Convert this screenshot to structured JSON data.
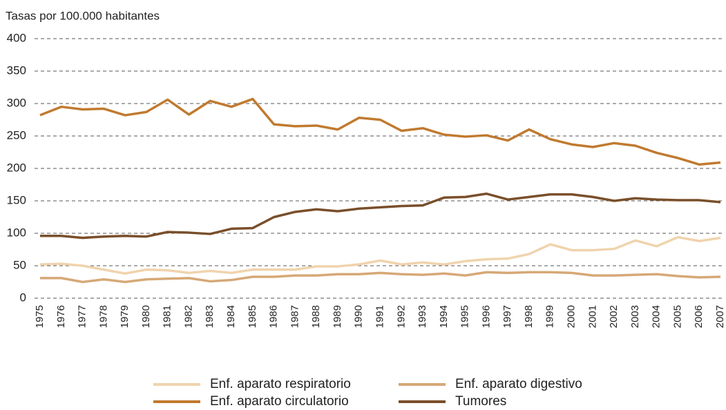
{
  "chart_data": {
    "type": "line",
    "y_label": "Tasas por 100.000 habitantes",
    "categories": [
      "1975",
      "1976",
      "1977",
      "1978",
      "1979",
      "1980",
      "1981",
      "1982",
      "1983",
      "1984",
      "1985",
      "1986",
      "1987",
      "1988",
      "1989",
      "1990",
      "1991",
      "1992",
      "1993",
      "1994",
      "1995",
      "1996",
      "1997",
      "1998",
      "1999",
      "2000",
      "2001",
      "2002",
      "2003",
      "2004",
      "2005",
      "2006",
      "2007"
    ],
    "series": [
      {
        "name": "Enf. aparato respiratorio",
        "color": "#f0d3ad",
        "values": [
          52,
          53,
          50,
          44,
          38,
          44,
          43,
          39,
          42,
          39,
          44,
          44,
          44,
          49,
          49,
          52,
          58,
          52,
          55,
          52,
          57,
          60,
          61,
          68,
          83,
          74,
          74,
          76,
          89,
          80,
          94,
          88,
          93
        ]
      },
      {
        "name": "Enf. aparato circulatorio",
        "color": "#c07a2f",
        "values": [
          282,
          295,
          291,
          292,
          282,
          287,
          306,
          283,
          304,
          295,
          307,
          268,
          265,
          266,
          260,
          278,
          275,
          258,
          262,
          252,
          249,
          251,
          243,
          260,
          245,
          237,
          233,
          239,
          235,
          224,
          216,
          206,
          209
        ]
      },
      {
        "name": "Enf. aparato digestivo",
        "color": "#d6a877",
        "values": [
          31,
          31,
          25,
          29,
          25,
          29,
          30,
          31,
          26,
          28,
          33,
          33,
          35,
          35,
          37,
          37,
          39,
          37,
          36,
          38,
          35,
          40,
          39,
          40,
          40,
          39,
          35,
          35,
          36,
          37,
          34,
          32,
          33
        ]
      },
      {
        "name": "Tumores",
        "color": "#7a4f2a",
        "values": [
          96,
          96,
          93,
          95,
          96,
          95,
          102,
          101,
          99,
          107,
          108,
          125,
          133,
          137,
          134,
          138,
          140,
          142,
          143,
          155,
          156,
          161,
          152,
          156,
          160,
          160,
          156,
          150,
          154,
          152,
          151,
          151,
          148
        ]
      }
    ],
    "ylim": [
      0,
      400
    ],
    "yticks": [
      0,
      50,
      100,
      150,
      200,
      250,
      300,
      350,
      400
    ],
    "grid": true
  }
}
